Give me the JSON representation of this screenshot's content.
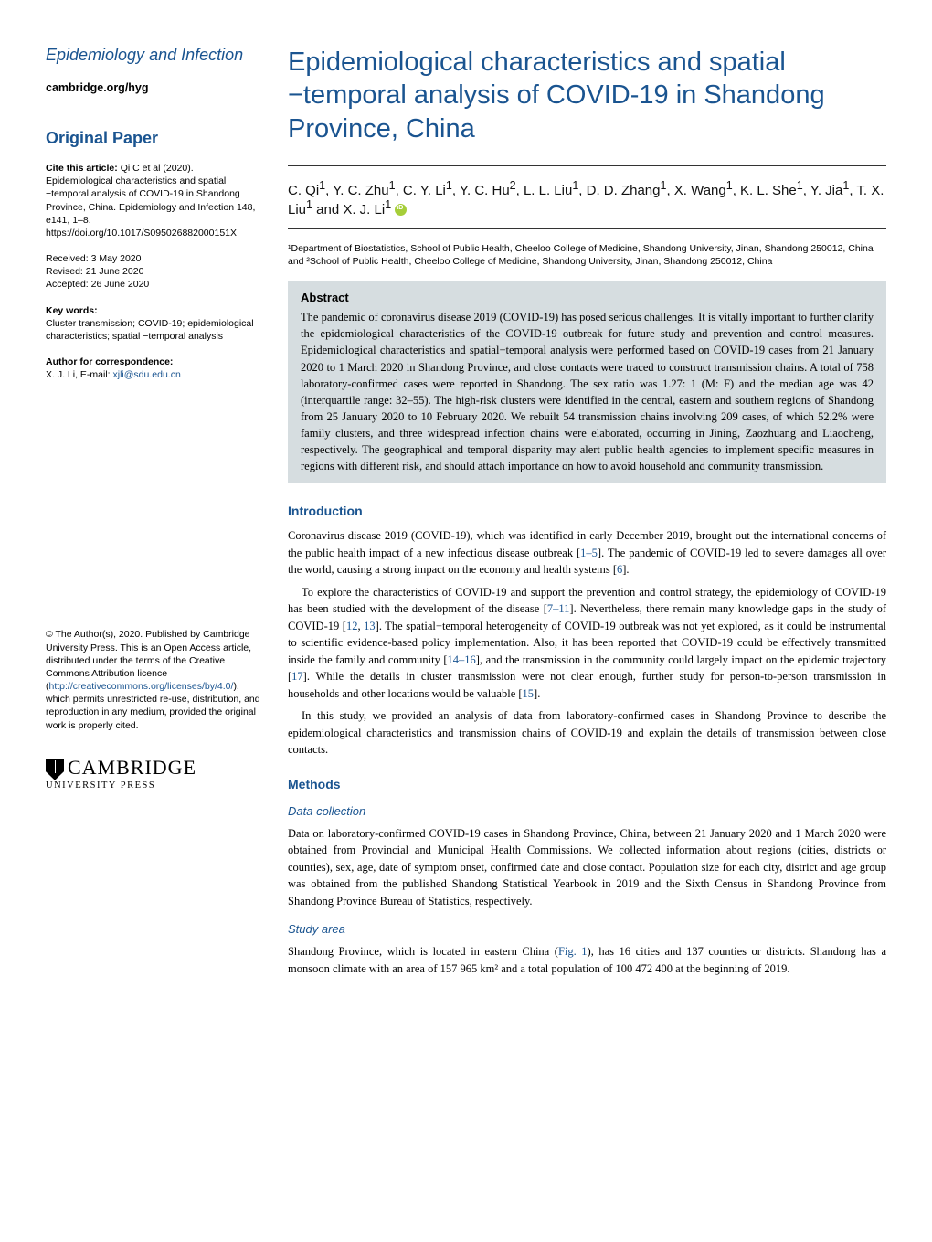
{
  "journal": {
    "name": "Epidemiology and Infection",
    "link": "cambridge.org/hyg"
  },
  "sidebar": {
    "paper_type": "Original Paper",
    "cite_label": "Cite this article:",
    "cite_text": " Qi C et al (2020). Epidemiological characteristics and spatial −temporal analysis of COVID-19 in Shandong Province, China. Epidemiology and Infection 148, e141, 1–8. https://doi.org/10.1017/S095026882000151X",
    "received": "Received: 3 May 2020",
    "revised": "Revised: 21 June 2020",
    "accepted": "Accepted: 26 June 2020",
    "kw_label": "Key words:",
    "kw_text": "Cluster transmission; COVID-19; epidemiological characteristics; spatial −temporal analysis",
    "corr_label": "Author for correspondence:",
    "corr_name": "X. J. Li, E-mail: ",
    "corr_email": "xjli@sdu.edu.cn"
  },
  "license": {
    "text_before": "© The Author(s), 2020. Published by Cambridge University Press. This is an Open Access article, distributed under the terms of the Creative Commons Attribution licence (",
    "url": "http://creativecommons.org/licenses/by/4.0/",
    "text_after": "), which permits unrestricted re-use, distribution, and reproduction in any medium, provided the original work is properly cited."
  },
  "publisher": {
    "name": "CAMBRIDGE",
    "sub": "UNIVERSITY PRESS"
  },
  "title": "Epidemiological characteristics and spatial −temporal analysis of COVID-19 in Shandong Province, China",
  "authors_html": "C. Qi<sup>1</sup>, Y. C. Zhu<sup>1</sup>, C. Y. Li<sup>1</sup>, Y. C. Hu<sup>2</sup>, L. L. Liu<sup>1</sup>, D. D. Zhang<sup>1</sup>, X. Wang<sup>1</sup>, K. L. She<sup>1</sup>, Y. Jia<sup>1</sup>, T. X. Liu<sup>1</sup> and X. J. Li<sup>1</sup>",
  "affiliations": "¹Department of Biostatistics, School of Public Health, Cheeloo College of Medicine, Shandong University, Jinan, Shandong 250012, China and ²School of Public Health, Cheeloo College of Medicine, Shandong University, Jinan, Shandong 250012, China",
  "abstract": {
    "label": "Abstract",
    "text": "The pandemic of coronavirus disease 2019 (COVID-19) has posed serious challenges. It is vitally important to further clarify the epidemiological characteristics of the COVID-19 outbreak for future study and prevention and control measures. Epidemiological characteristics and spatial−temporal analysis were performed based on COVID-19 cases from 21 January 2020 to 1 March 2020 in Shandong Province, and close contacts were traced to construct transmission chains. A total of 758 laboratory-confirmed cases were reported in Shandong. The sex ratio was 1.27: 1 (M: F) and the median age was 42 (interquartile range: 32–55). The high-risk clusters were identified in the central, eastern and southern regions of Shandong from 25 January 2020 to 10 February 2020. We rebuilt 54 transmission chains involving 209 cases, of which 52.2% were family clusters, and three widespread infection chains were elaborated, occurring in Jining, Zaozhuang and Liaocheng, respectively. The geographical and temporal disparity may alert public health agencies to implement specific measures in regions with different risk, and should attach importance on how to avoid household and community transmission."
  },
  "sections": {
    "intro_h": "Introduction",
    "intro_p1": "Coronavirus disease 2019 (COVID-19), which was identified in early December 2019, brought out the international concerns of the public health impact of a new infectious disease outbreak [1–5]. The pandemic of COVID-19 led to severe damages all over the world, causing a strong impact on the economy and health systems [6].",
    "intro_p2": "To explore the characteristics of COVID-19 and support the prevention and control strategy, the epidemiology of COVID-19 has been studied with the development of the disease [7–11]. Nevertheless, there remain many knowledge gaps in the study of COVID-19 [12, 13]. The spatial−temporal heterogeneity of COVID-19 outbreak was not yet explored, as it could be instrumental to scientific evidence-based policy implementation. Also, it has been reported that COVID-19 could be effectively transmitted inside the family and community [14–16], and the transmission in the community could largely impact on the epidemic trajectory [17]. While the details in cluster transmission were not clear enough, further study for person-to-person transmission in households and other locations would be valuable [15].",
    "intro_p3": "In this study, we provided an analysis of data from laboratory-confirmed cases in Shandong Province to describe the epidemiological characteristics and transmission chains of COVID-19 and explain the details of transmission between close contacts.",
    "methods_h": "Methods",
    "data_h": "Data collection",
    "data_p": "Data on laboratory-confirmed COVID-19 cases in Shandong Province, China, between 21 January 2020 and 1 March 2020 were obtained from Provincial and Municipal Health Commissions. We collected information about regions (cities, districts or counties), sex, age, date of symptom onset, confirmed date and close contact. Population size for each city, district and age group was obtained from the published Shandong Statistical Yearbook in 2019 and the Sixth Census in Shandong Province from Shandong Province Bureau of Statistics, respectively.",
    "study_h": "Study area",
    "study_p": "Shandong Province, which is located in eastern China (Fig. 1), has 16 cities and 137 counties or districts. Shandong has a monsoon climate with an area of 157 965 km² and a total population of 100 472 400 at the beginning of 2019."
  },
  "colors": {
    "accent": "#1a5490",
    "abstract_bg": "#d6dde0",
    "orcid": "#a6ce39"
  }
}
